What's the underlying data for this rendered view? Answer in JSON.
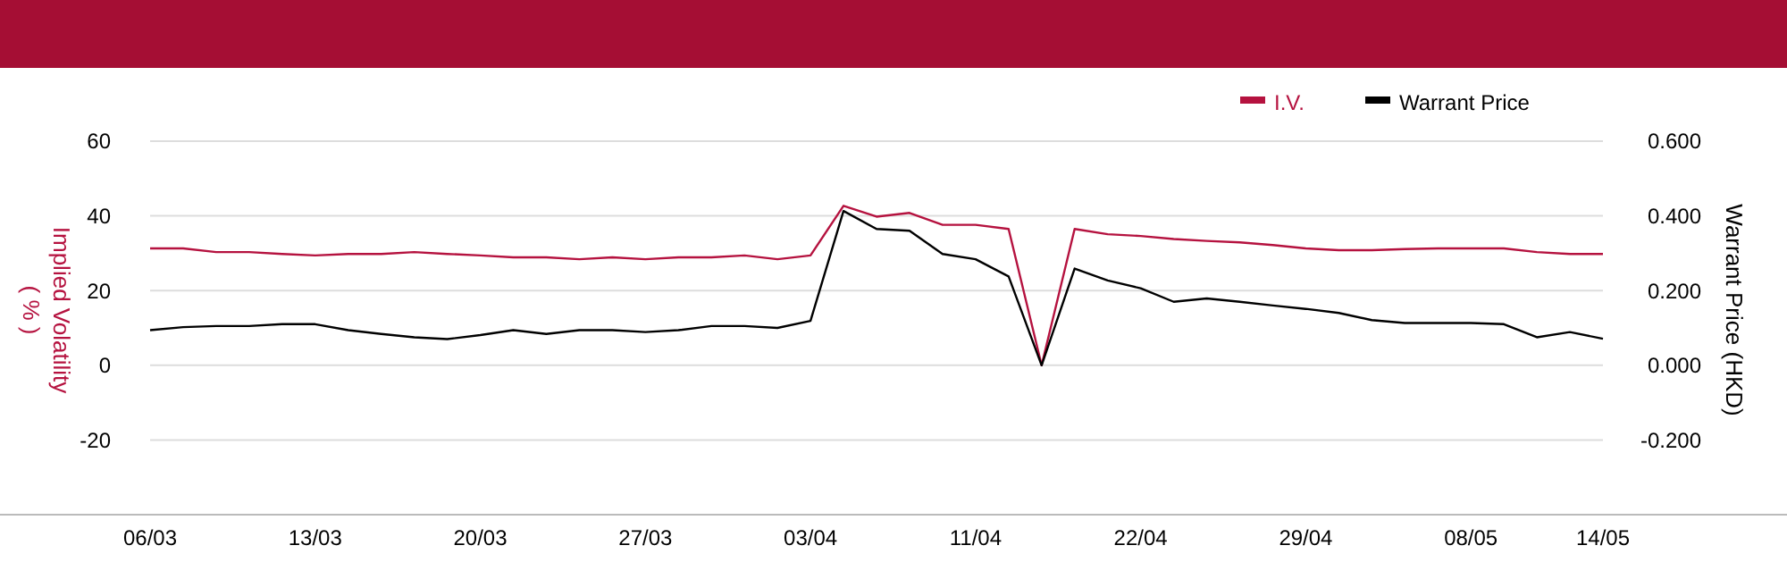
{
  "chart_data": {
    "type": "line",
    "ylabel": "Implied Volatility ( % )",
    "y2label": "Warrant Price (HKD)",
    "categories": [
      "06/03",
      null,
      null,
      null,
      null,
      "13/03",
      null,
      null,
      null,
      null,
      "20/03",
      null,
      null,
      null,
      null,
      "27/03",
      null,
      null,
      null,
      null,
      "03/04",
      null,
      null,
      null,
      null,
      "11/04",
      null,
      null,
      null,
      null,
      "22/04",
      null,
      null,
      null,
      null,
      "29/04",
      null,
      null,
      null,
      null,
      "08/05",
      null,
      null,
      null,
      "14/05"
    ],
    "series": [
      {
        "name": "I.V.",
        "color": "#b5123f",
        "values": [
          31.3,
          31.3,
          30.3,
          30.3,
          29.8,
          29.4,
          29.8,
          29.8,
          30.3,
          29.8,
          29.4,
          28.9,
          28.9,
          28.4,
          28.9,
          28.4,
          28.9,
          28.9,
          29.4,
          28.4,
          29.4,
          42.7,
          39.8,
          40.8,
          37.6,
          37.6,
          36.5,
          0,
          36.5,
          35.1,
          34.6,
          33.8,
          33.3,
          32.9,
          32.2,
          31.3,
          30.8,
          30.8,
          31.1,
          31.3,
          31.3,
          31.3,
          30.3,
          29.8,
          29.8
        ]
      },
      {
        "name": "Warrant Price",
        "color": "#000000",
        "axis": "y2",
        "values": [
          0.094,
          0.102,
          0.105,
          0.105,
          0.11,
          0.11,
          0.094,
          0.084,
          0.075,
          0.07,
          0.081,
          0.094,
          0.084,
          0.094,
          0.094,
          0.089,
          0.094,
          0.105,
          0.105,
          0.1,
          0.119,
          0.413,
          0.365,
          0.36,
          0.298,
          0.284,
          0.238,
          0,
          0.259,
          0.227,
          0.206,
          0.17,
          0.179,
          0.17,
          0.16,
          0.151,
          0.14,
          0.121,
          0.113,
          0.113,
          0.113,
          0.11,
          0.075,
          0.089,
          0.071
        ]
      }
    ],
    "ylim": [
      -40,
      60
    ],
    "yticks": [
      -20,
      0,
      20,
      40,
      60
    ],
    "y2lim": [
      -0.4,
      0.6
    ],
    "y2ticks": [
      {
        "value": -0.2,
        "label": "-0.200"
      },
      {
        "value": 0,
        "label": "0.000"
      },
      {
        "value": 0.2,
        "label": "0.200"
      },
      {
        "value": 0.4,
        "label": "0.400"
      },
      {
        "value": 0.6,
        "label": "0.600"
      }
    ],
    "grid": "y",
    "legend": "top right",
    "marker": "none",
    "line_style": "solid"
  }
}
